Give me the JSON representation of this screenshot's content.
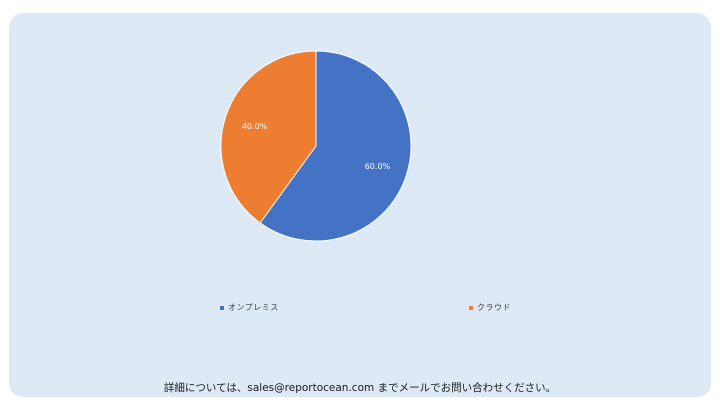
{
  "chart_data": {
    "type": "pie",
    "categories": [
      "オンプレミス",
      "クラウド"
    ],
    "values": [
      60.0,
      40.0
    ],
    "data_labels": [
      "60.0%",
      "40.0%"
    ],
    "colors": [
      "#4472c4",
      "#ed7d31"
    ],
    "legend_position": "bottom"
  },
  "legend": {
    "items": [
      "オンプレミス",
      "クラウド"
    ]
  },
  "footer": {
    "text": "詳細については、sales@reportocean.com までメールでお問い合わせください。"
  }
}
